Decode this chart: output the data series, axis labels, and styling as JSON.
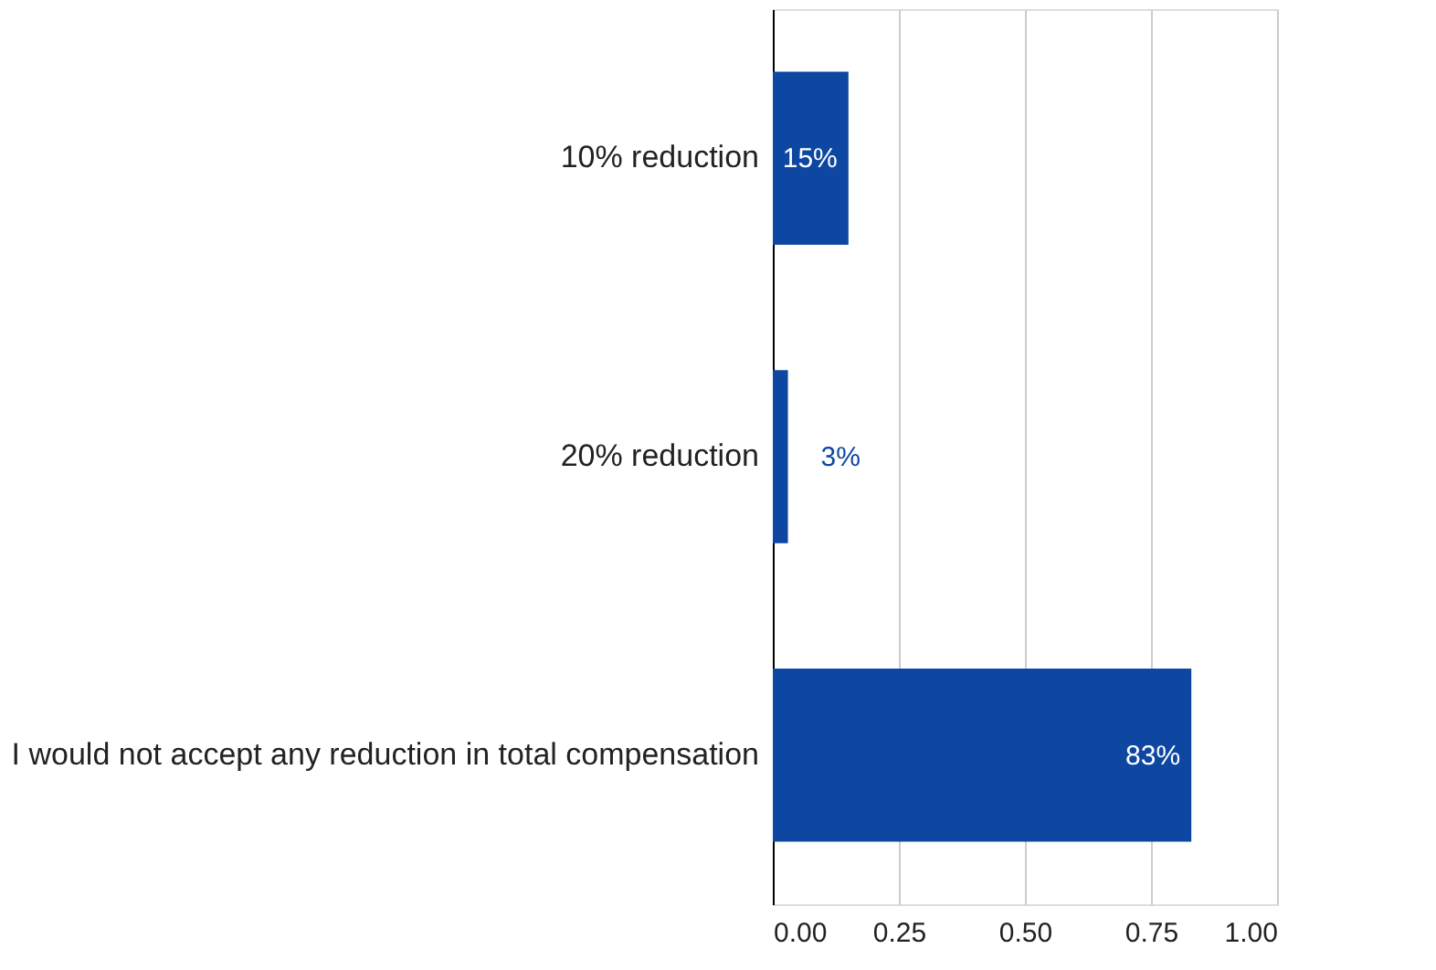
{
  "chart_data": {
    "type": "bar",
    "orientation": "horizontal",
    "categories": [
      "10% reduction",
      "20% reduction",
      "I would not accept any reduction in total compensation"
    ],
    "values": [
      0.15,
      0.03,
      0.83
    ],
    "value_labels": [
      "15%",
      "3%",
      "83%"
    ],
    "color": "#0d47a1",
    "xlim": [
      0,
      1
    ],
    "xticks": [
      "0.00",
      "0.25",
      "0.50",
      "0.75",
      "1.00"
    ],
    "grid": "x"
  }
}
